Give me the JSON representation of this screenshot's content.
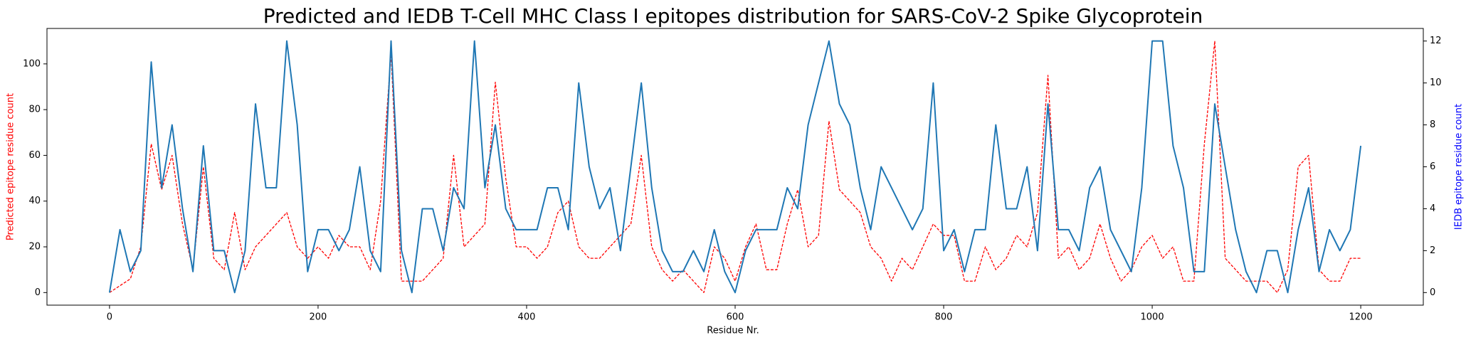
{
  "chart_data": {
    "type": "line",
    "title": "Predicted and IEDB T-Cell MHC Class I epitopes distribution for SARS-CoV-2 Spike Glycoprotein",
    "xlabel": "Residue Nr.",
    "ylabel": "Predicted epitope residue count",
    "y2label": "IEDB epitope residue count",
    "ylabel_color": "#ff0000",
    "y2label_color": "#0000ff",
    "x": [
      0,
      10,
      20,
      30,
      40,
      50,
      60,
      70,
      80,
      90,
      100,
      110,
      120,
      130,
      140,
      150,
      160,
      170,
      180,
      190,
      200,
      210,
      220,
      230,
      240,
      250,
      260,
      270,
      280,
      290,
      300,
      310,
      320,
      330,
      340,
      350,
      360,
      370,
      380,
      390,
      400,
      410,
      420,
      430,
      440,
      450,
      460,
      470,
      480,
      490,
      500,
      510,
      520,
      530,
      540,
      550,
      560,
      570,
      580,
      590,
      600,
      610,
      620,
      630,
      640,
      650,
      660,
      670,
      680,
      690,
      700,
      710,
      720,
      730,
      740,
      750,
      760,
      770,
      780,
      790,
      800,
      810,
      820,
      830,
      840,
      850,
      860,
      870,
      880,
      890,
      900,
      910,
      920,
      930,
      940,
      950,
      960,
      970,
      980,
      990,
      1000,
      1010,
      1020,
      1030,
      1040,
      1050,
      1060,
      1070,
      1080,
      1090,
      1100,
      1110,
      1120,
      1130,
      1140,
      1150,
      1160,
      1170,
      1180,
      1190,
      1200
    ],
    "series": [
      {
        "color": "#ff0000",
        "linestyle": "dashed",
        "axis": "y",
        "values": [
          0,
          3,
          6,
          20,
          65,
          45,
          60,
          30,
          10,
          55,
          15,
          10,
          35,
          10,
          20,
          25,
          30,
          35,
          20,
          15,
          20,
          15,
          25,
          20,
          20,
          10,
          40,
          105,
          5,
          5,
          5,
          10,
          15,
          60,
          20,
          25,
          30,
          92,
          50,
          20,
          20,
          15,
          20,
          35,
          40,
          20,
          15,
          15,
          20,
          25,
          30,
          60,
          20,
          10,
          5,
          10,
          5,
          0,
          20,
          15,
          5,
          20,
          30,
          10,
          10,
          30,
          45,
          20,
          25,
          75,
          45,
          40,
          35,
          20,
          15,
          5,
          15,
          10,
          20,
          30,
          25,
          25,
          5,
          5,
          20,
          10,
          15,
          25,
          20,
          35,
          95,
          15,
          20,
          10,
          15,
          30,
          15,
          5,
          10,
          20,
          25,
          15,
          20,
          5,
          5,
          65,
          110,
          15,
          10,
          5,
          5,
          5,
          0,
          10,
          55,
          60,
          10,
          5,
          5,
          15,
          15
        ]
      },
      {
        "color": "#1f77b4",
        "linestyle": "solid",
        "axis": "y2",
        "values": [
          0,
          3,
          1,
          2,
          11,
          5,
          8,
          4,
          1,
          7,
          2,
          2,
          0,
          2,
          9,
          5,
          5,
          12,
          8,
          1,
          3,
          3,
          2,
          3,
          6,
          2,
          1,
          12,
          2,
          0,
          4,
          4,
          2,
          5,
          4,
          12,
          5,
          8,
          4,
          3,
          3,
          3,
          5,
          5,
          3,
          10,
          6,
          4,
          5,
          2,
          6,
          10,
          5,
          2,
          1,
          1,
          2,
          1,
          3,
          1,
          0,
          2,
          3,
          3,
          3,
          5,
          4,
          8,
          10,
          12,
          9,
          8,
          5,
          3,
          6,
          5,
          4,
          3,
          4,
          10,
          2,
          3,
          1,
          3,
          3,
          8,
          4,
          4,
          6,
          2,
          9,
          3,
          3,
          2,
          5,
          6,
          3,
          2,
          1,
          5,
          12,
          12,
          7,
          5,
          1,
          1,
          9,
          6,
          3,
          1,
          0,
          2,
          2,
          0,
          3,
          5,
          1,
          3,
          2,
          3,
          7
        ]
      }
    ],
    "xlim": [
      -60,
      1260
    ],
    "xticks": [
      0,
      200,
      400,
      600,
      800,
      1000,
      1200
    ],
    "ylim": [
      -5.5,
      115.5
    ],
    "yticks": [
      0,
      20,
      40,
      60,
      80,
      100
    ],
    "y2lim": [
      -0.6,
      12.6
    ],
    "y2ticks": [
      0,
      2,
      4,
      6,
      8,
      10,
      12
    ],
    "grid": false
  }
}
